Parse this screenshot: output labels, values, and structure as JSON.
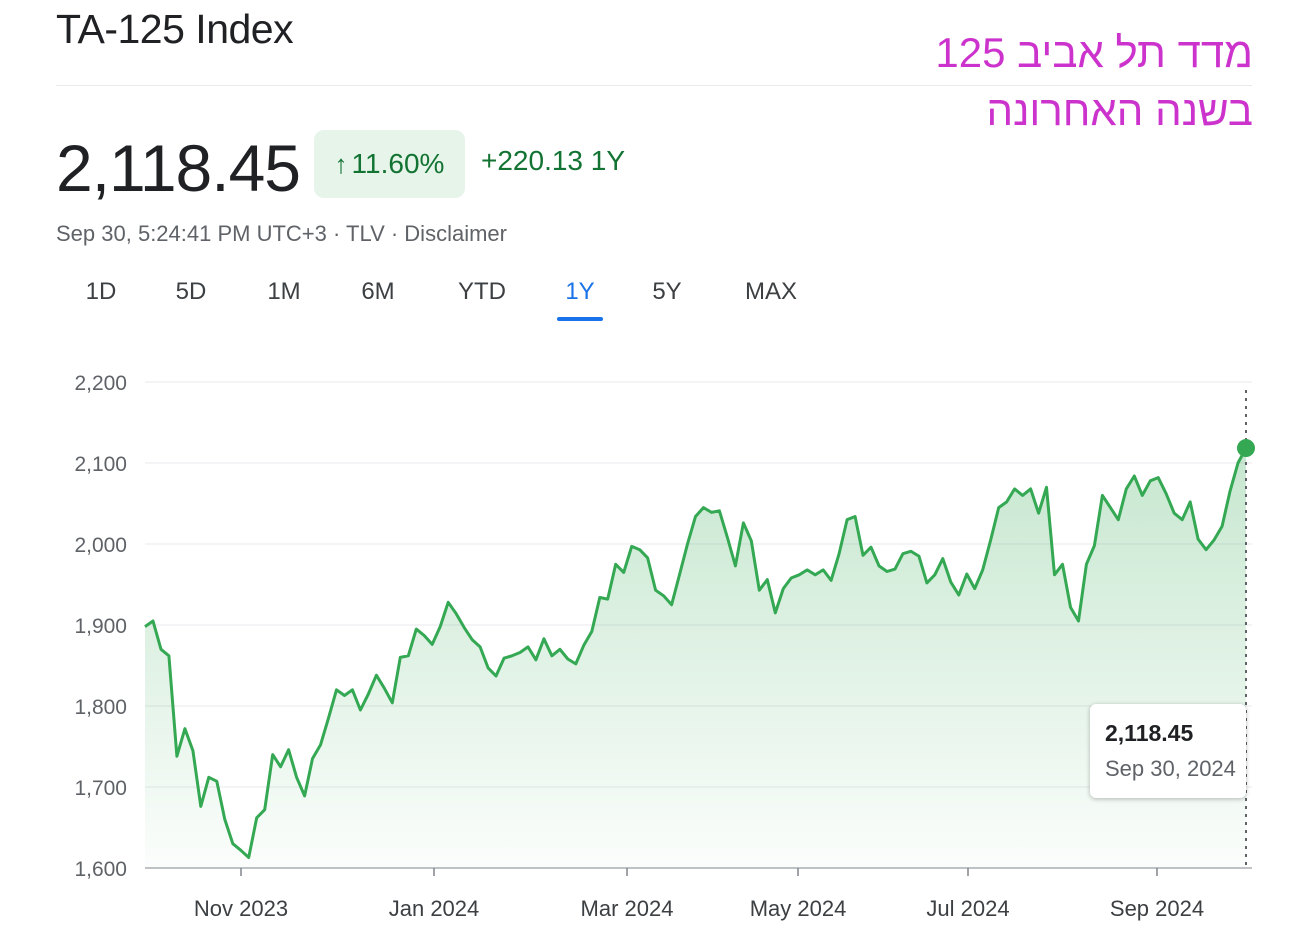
{
  "header": {
    "title": "TA-125 Index",
    "hebrew_line1": "מדד תל אביב 125",
    "hebrew_line2": "בשנה האחרונה",
    "price": "2,118.45",
    "change_percent": "11.60%",
    "change_value": "+220.13 1Y",
    "timestamp": "Sep 30, 5:24:41 PM UTC+3 · TLV · Disclaimer"
  },
  "colors": {
    "line": "#34a853",
    "positive_text": "#137333",
    "positive_bg": "#e6f4ea",
    "tab_active": "#1a73e8",
    "title_hebrew": "#cc33cc"
  },
  "tabs": [
    {
      "label": "1D",
      "active": false
    },
    {
      "label": "5D",
      "active": false
    },
    {
      "label": "1M",
      "active": false
    },
    {
      "label": "6M",
      "active": false
    },
    {
      "label": "YTD",
      "active": false
    },
    {
      "label": "1Y",
      "active": true
    },
    {
      "label": "5Y",
      "active": false
    },
    {
      "label": "MAX",
      "active": false
    }
  ],
  "tooltip": {
    "value": "2,118.45",
    "date": "Sep 30, 2024"
  },
  "chart_data": {
    "type": "area",
    "x_ticks": [
      "Nov 2023",
      "Jan 2024",
      "Mar 2024",
      "May 2024",
      "Jul 2024",
      "Sep 2024"
    ],
    "ylim": [
      1600,
      2200
    ],
    "y_ticks": [
      1600,
      1700,
      1800,
      1900,
      2000,
      2100,
      2200
    ],
    "y_tick_labels": [
      "1,600",
      "1,700",
      "1,800",
      "1,900",
      "2,000",
      "2,100",
      "2,200"
    ],
    "grid": true,
    "series": [
      {
        "x_range": [
          "Oct 1, 2023",
          "Sep 30, 2024"
        ],
        "values": [
          1898,
          1905,
          1870,
          1862,
          1738,
          1772,
          1745,
          1676,
          1712,
          1707,
          1660,
          1630,
          1622,
          1613,
          1662,
          1672,
          1740,
          1725,
          1746,
          1712,
          1689,
          1735,
          1752,
          1785,
          1820,
          1813,
          1820,
          1795,
          1815,
          1838,
          1822,
          1804,
          1860,
          1862,
          1895,
          1887,
          1876,
          1898,
          1928,
          1914,
          1897,
          1882,
          1873,
          1847,
          1837,
          1859,
          1862,
          1866,
          1873,
          1857,
          1883,
          1862,
          1870,
          1858,
          1852,
          1875,
          1892,
          1934,
          1932,
          1975,
          1965,
          1997,
          1993,
          1983,
          1943,
          1936,
          1925,
          1962,
          2000,
          2034,
          2045,
          2039,
          2041,
          2008,
          1973,
          2026,
          2004,
          1943,
          1956,
          1915,
          1945,
          1958,
          1962,
          1968,
          1962,
          1968,
          1955,
          1988,
          2030,
          2034,
          1986,
          1996,
          1973,
          1966,
          1969,
          1988,
          1991,
          1985,
          1952,
          1962,
          1982,
          1953,
          1937,
          1963,
          1945,
          1968,
          2005,
          2045,
          2052,
          2068,
          2060,
          2068,
          2038,
          2070,
          1962,
          1975,
          1922,
          1905,
          1975,
          1998,
          2060,
          2045,
          2030,
          2068,
          2084,
          2060,
          2078,
          2082,
          2062,
          2038,
          2030,
          2052,
          2006,
          1993,
          2005,
          2022,
          2065,
          2100,
          2118.45
        ]
      }
    ]
  }
}
